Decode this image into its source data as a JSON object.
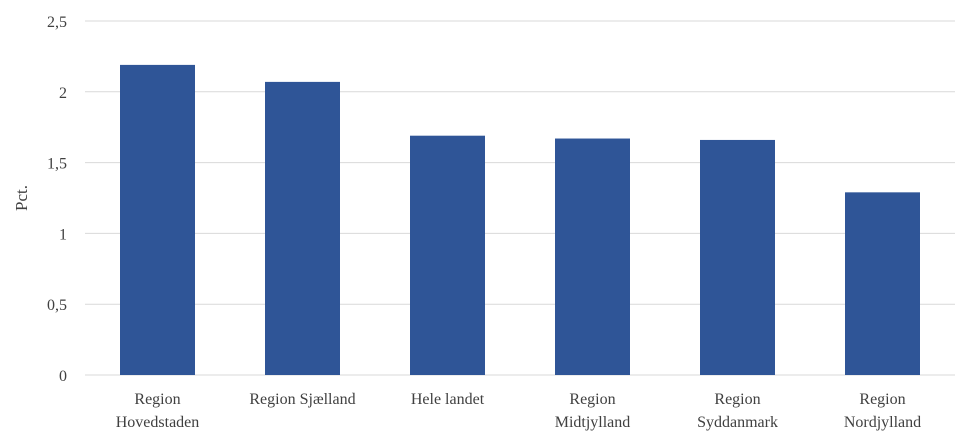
{
  "chart_data": {
    "type": "bar",
    "categories": [
      [
        "Region",
        "Hovedstaden"
      ],
      [
        "Region Sjælland"
      ],
      [
        "Hele landet"
      ],
      [
        "Region",
        "Midtjylland"
      ],
      [
        "Region",
        "Syddanmark"
      ],
      [
        "Region",
        "Nordjylland"
      ]
    ],
    "values": [
      2.19,
      2.07,
      1.69,
      1.67,
      1.66,
      1.29
    ],
    "ylabel": "Pct.",
    "ylim": [
      0,
      2.5
    ],
    "yticks": [
      0,
      0.5,
      1,
      1.5,
      2,
      2.5
    ],
    "ytick_labels": [
      "0",
      "0,5",
      "1",
      "1,5",
      "2",
      "2,5"
    ],
    "grid": true,
    "colors": {
      "bar": "#2f5597"
    }
  }
}
